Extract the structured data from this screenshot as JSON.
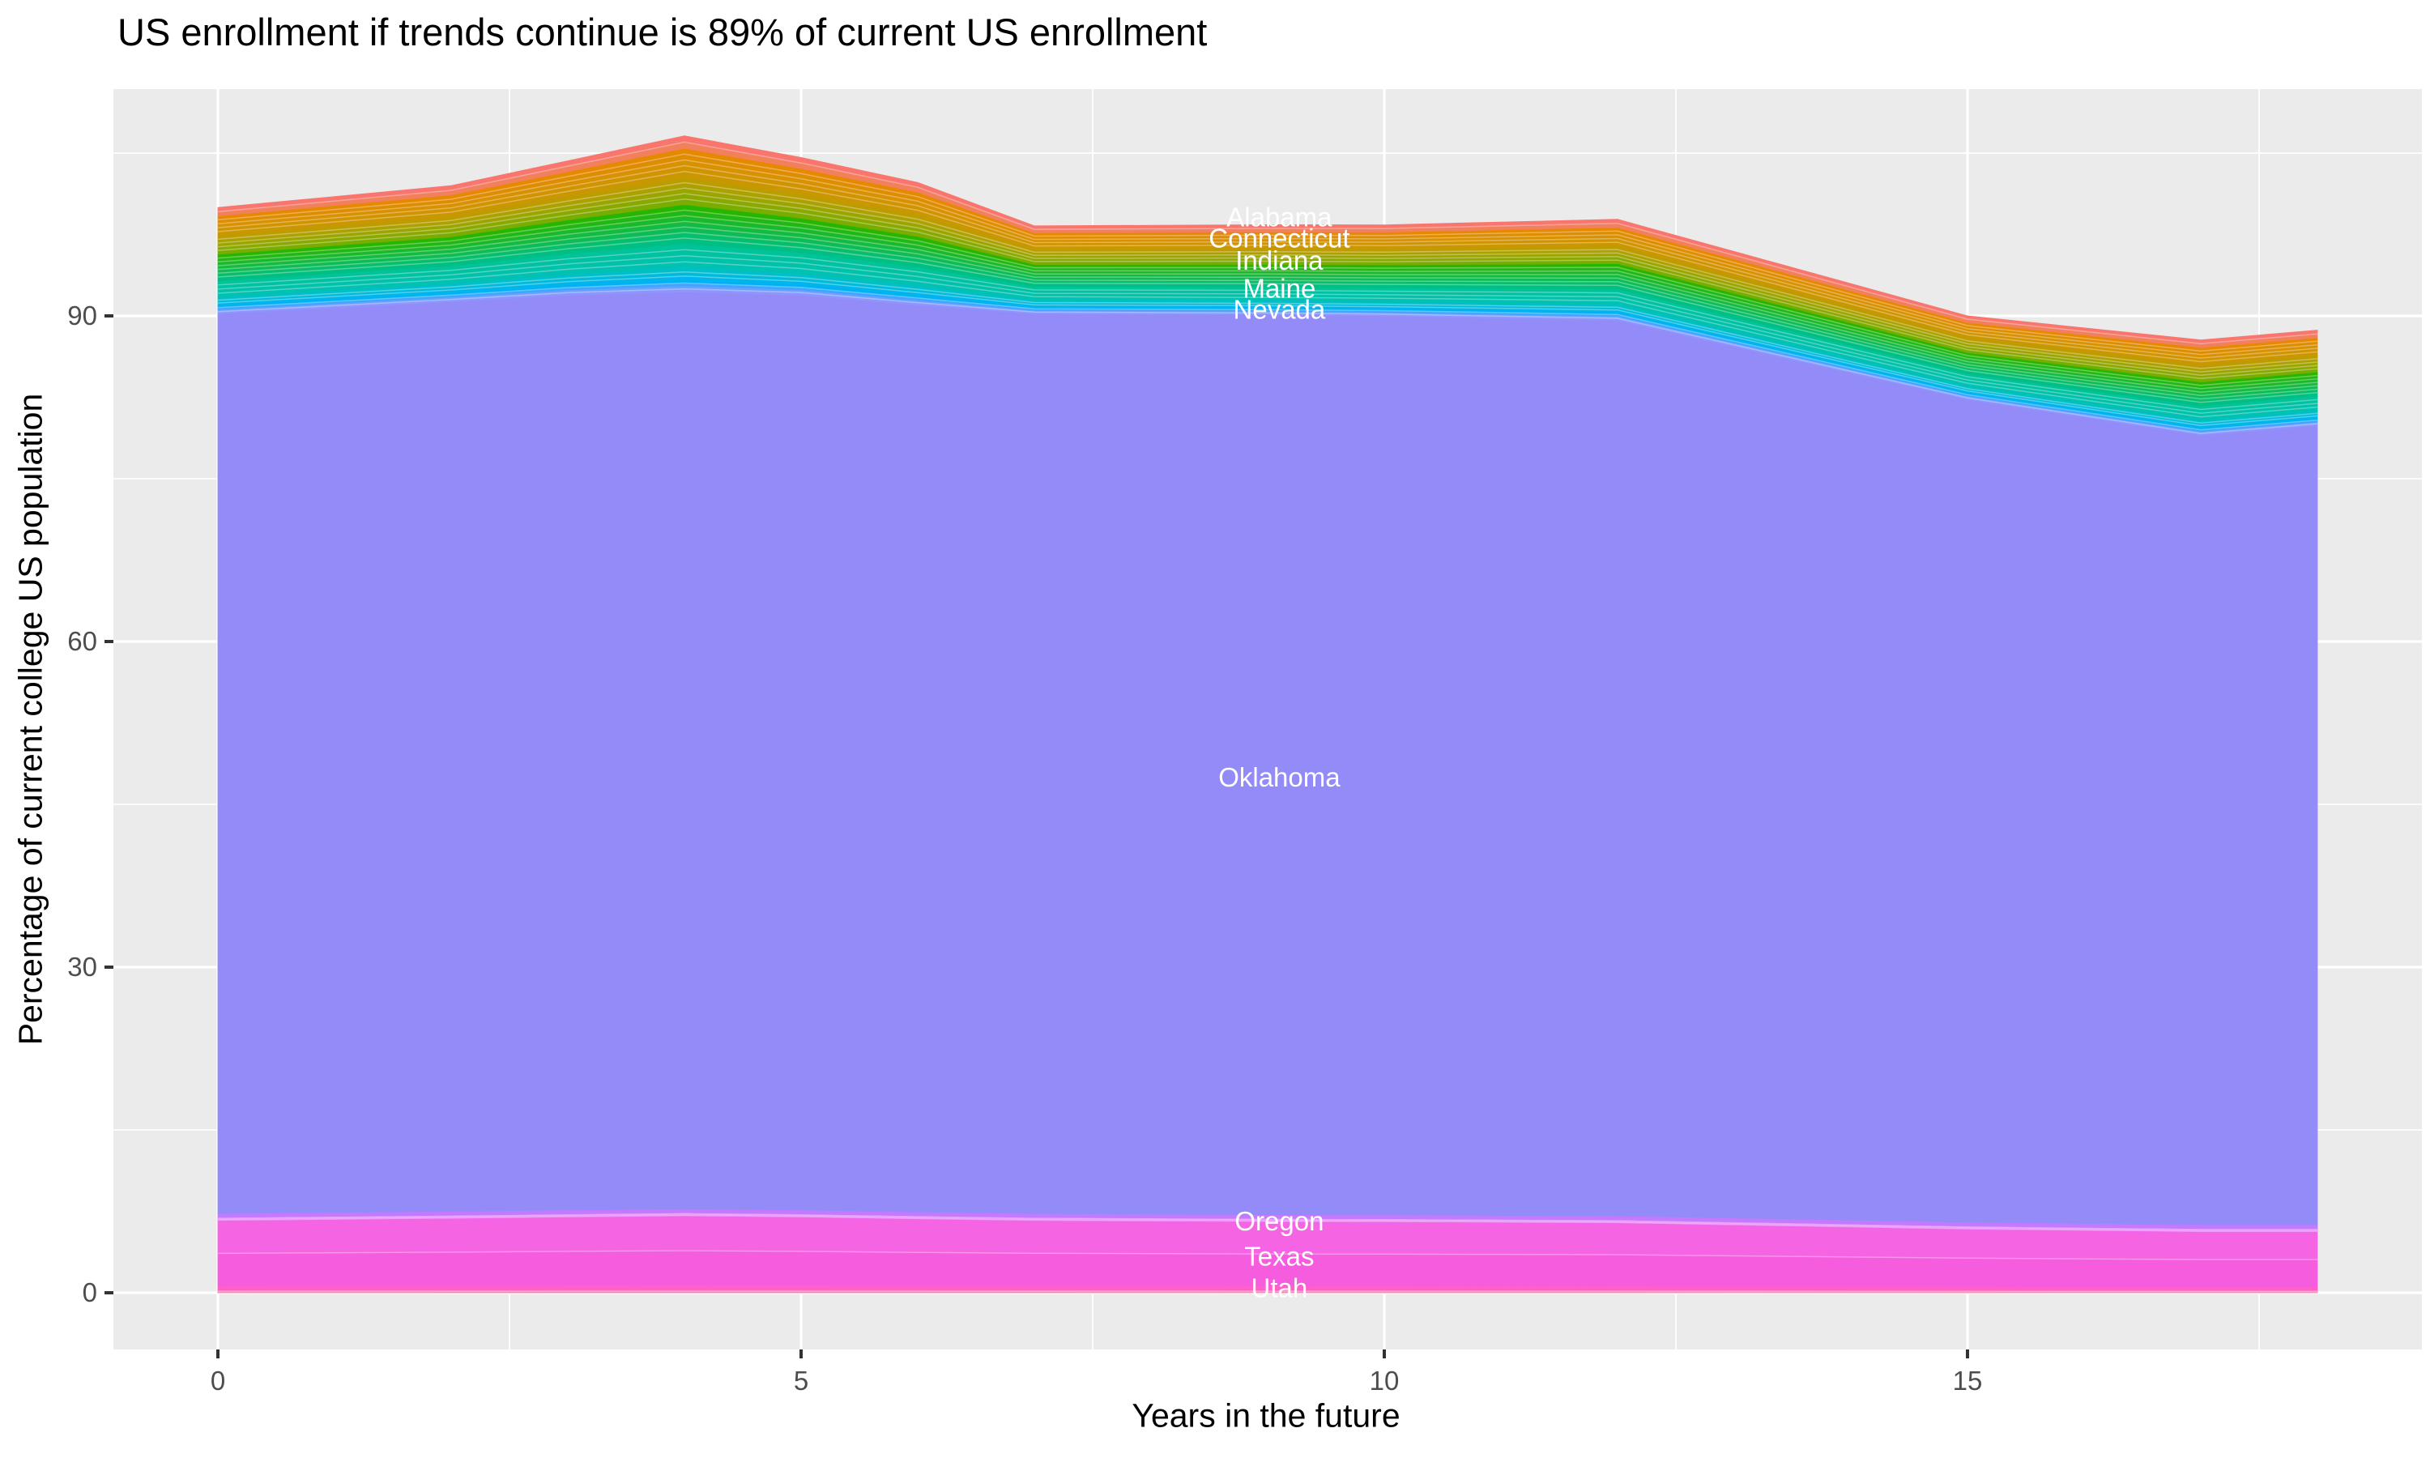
{
  "chart_data": {
    "type": "area",
    "stacked": true,
    "title": "US enrollment if trends continue is 89% of current US enrollment",
    "xlabel": "Years in the future",
    "ylabel": "Percentage of current college US population",
    "legend": "none",
    "grid": true,
    "panel_background": "#EBEBEB",
    "gridline_color": "#FFFFFF",
    "tick_label_color": "#4D4D4D",
    "tick_mark_color": "#333333",
    "label_text_color": "#FFFFFF",
    "x_range": [
      0,
      18
    ],
    "y_range_displayed": [
      -5,
      111
    ],
    "x_major_ticks": [
      0,
      5,
      10,
      15
    ],
    "x_minor_gridlines": [
      2.5,
      7.5,
      12.5,
      17.5
    ],
    "y_major_ticks": [
      0,
      30,
      60,
      90
    ],
    "y_minor_gridlines": [
      15,
      45,
      75,
      105
    ],
    "total_end_value_pct": 89,
    "x": [
      0,
      2,
      3,
      4,
      5,
      6,
      7,
      9,
      10,
      12,
      15,
      17,
      18
    ],
    "totals": [
      100.0,
      102.0,
      104.3,
      106.6,
      104.6,
      102.3,
      98.3,
      98.4,
      98.4,
      98.9,
      90.0,
      87.8,
      88.7
    ],
    "series_order": "bottom to top",
    "series": [
      {
        "name": "Other states (bottom pink slivers)",
        "label": null,
        "color_from": "#FF6B9A",
        "color_to": "#FF61B9",
        "subbands": 3,
        "values": [
          0.25,
          0.26,
          0.27,
          0.27,
          0.27,
          0.27,
          0.26,
          0.25,
          0.25,
          0.25,
          0.23,
          0.22,
          0.22
        ]
      },
      {
        "name": "Utah",
        "label": "Utah",
        "color_from": "#FF61C7",
        "color_to": "#FF61C7",
        "subbands": 1,
        "values": [
          0.4,
          0.42,
          0.43,
          0.45,
          0.43,
          0.42,
          0.41,
          0.4,
          0.39,
          0.38,
          0.35,
          0.33,
          0.33
        ]
      },
      {
        "name": "Texas",
        "label": "Texas",
        "color_from": "#F55CDE",
        "color_to": "#F564E3",
        "subbands": 2,
        "values": [
          5.95,
          6.12,
          6.22,
          6.31,
          6.22,
          6.06,
          5.93,
          5.85,
          5.84,
          5.75,
          5.22,
          5.02,
          5.02
        ]
      },
      {
        "name": "Other states (violet slivers)",
        "label": null,
        "color_from": "#EC66EE",
        "color_to": "#D873F9",
        "subbands": 4,
        "values": [
          0.35,
          0.35,
          0.35,
          0.35,
          0.35,
          0.35,
          0.35,
          0.35,
          0.35,
          0.35,
          0.35,
          0.35,
          0.35
        ]
      },
      {
        "name": "Oregon",
        "label": "Oregon",
        "color_from": "#C47AFE",
        "color_to": "#C47AFE",
        "subbands": 1,
        "values": [
          0.35,
          0.35,
          0.35,
          0.35,
          0.35,
          0.35,
          0.35,
          0.35,
          0.35,
          0.35,
          0.35,
          0.35,
          0.35
        ]
      },
      {
        "name": "Oklahoma",
        "label": "Oklahoma",
        "color_from": "#938BF8",
        "color_to": "#938BF8",
        "subbands": 1,
        "values": [
          82.9,
          83.8,
          84.28,
          84.47,
          84.28,
          83.55,
          82.9,
          82.9,
          82.82,
          82.52,
          75.8,
          72.73,
          73.63
        ]
      },
      {
        "name": "Other states (periwinkle slivers)",
        "label": null,
        "color_from": "#8E96FD",
        "color_to": "#6E9FFF",
        "subbands": 2,
        "values": [
          0.39,
          0.43,
          0.5,
          0.58,
          0.51,
          0.45,
          0.32,
          0.33,
          0.34,
          0.37,
          0.31,
          0.35,
          0.35
        ]
      },
      {
        "name": "Other states (bright blue sliver)",
        "label": null,
        "color_from": "#3DA6FF",
        "color_to": "#00AEF9",
        "subbands": 2,
        "values": [
          0.34,
          0.37,
          0.43,
          0.5,
          0.44,
          0.4,
          0.28,
          0.29,
          0.29,
          0.33,
          0.27,
          0.31,
          0.31
        ]
      },
      {
        "name": "Nevada",
        "label": "Nevada",
        "color_from": "#00B5EC",
        "color_to": "#00BFCB",
        "subbands": 3,
        "values": [
          0.78,
          0.86,
          0.99,
          1.15,
          1.02,
          0.9,
          0.65,
          0.66,
          0.67,
          0.74,
          0.62,
          0.7,
          0.7
        ]
      },
      {
        "name": "Maine",
        "label": "Maine",
        "color_from": "#00C1B2",
        "color_to": "#00C29B",
        "subbands": 4,
        "values": [
          1.52,
          1.66,
          1.92,
          2.23,
          1.97,
          1.75,
          1.26,
          1.29,
          1.3,
          1.44,
          1.19,
          1.36,
          1.36
        ]
      },
      {
        "name": "Indiana",
        "label": "Indiana",
        "color_from": "#00BF83",
        "color_to": "#27B600",
        "subbands": 7,
        "values": [
          2.45,
          2.67,
          3.1,
          3.6,
          3.17,
          2.83,
          2.02,
          2.08,
          2.1,
          2.33,
          1.93,
          2.2,
          2.2
        ]
      },
      {
        "name": "Connecticut",
        "label": "Connecticut",
        "color_from": "#79AD00",
        "color_to": "#BC9D00",
        "subbands": 5,
        "values": [
          1.72,
          1.87,
          2.17,
          2.52,
          2.22,
          1.98,
          1.42,
          1.45,
          1.47,
          1.63,
          1.35,
          1.54,
          1.54
        ]
      },
      {
        "name": "Other states (orange)",
        "label": null,
        "color_from": "#CA9700",
        "color_to": "#E58A00",
        "subbands": 5,
        "values": [
          1.81,
          1.98,
          2.29,
          2.66,
          2.35,
          2.09,
          1.5,
          1.54,
          1.55,
          1.72,
          1.42,
          1.63,
          1.63
        ]
      },
      {
        "name": "Alabama",
        "label": "Alabama",
        "color_from": "#F2805C",
        "color_to": "#F8766D",
        "subbands": 2,
        "values": [
          0.78,
          0.86,
          0.99,
          1.15,
          1.02,
          0.9,
          0.65,
          0.66,
          0.67,
          0.74,
          0.62,
          0.7,
          0.7
        ]
      }
    ],
    "area_labels": [
      {
        "text": "Alabama",
        "x": 9.1,
        "y": 99.1
      },
      {
        "text": "Connecticut",
        "x": 9.1,
        "y": 97.15
      },
      {
        "text": "Indiana",
        "x": 9.1,
        "y": 95.1
      },
      {
        "text": "Maine",
        "x": 9.1,
        "y": 92.55
      },
      {
        "text": "Nevada",
        "x": 9.1,
        "y": 90.6
      },
      {
        "text": "Oklahoma",
        "x": 9.1,
        "y": 47.5
      },
      {
        "text": "Oregon",
        "x": 9.1,
        "y": 6.6
      },
      {
        "text": "Texas",
        "x": 9.1,
        "y": 3.35
      },
      {
        "text": "Utah",
        "x": 9.1,
        "y": 0.45
      }
    ]
  }
}
